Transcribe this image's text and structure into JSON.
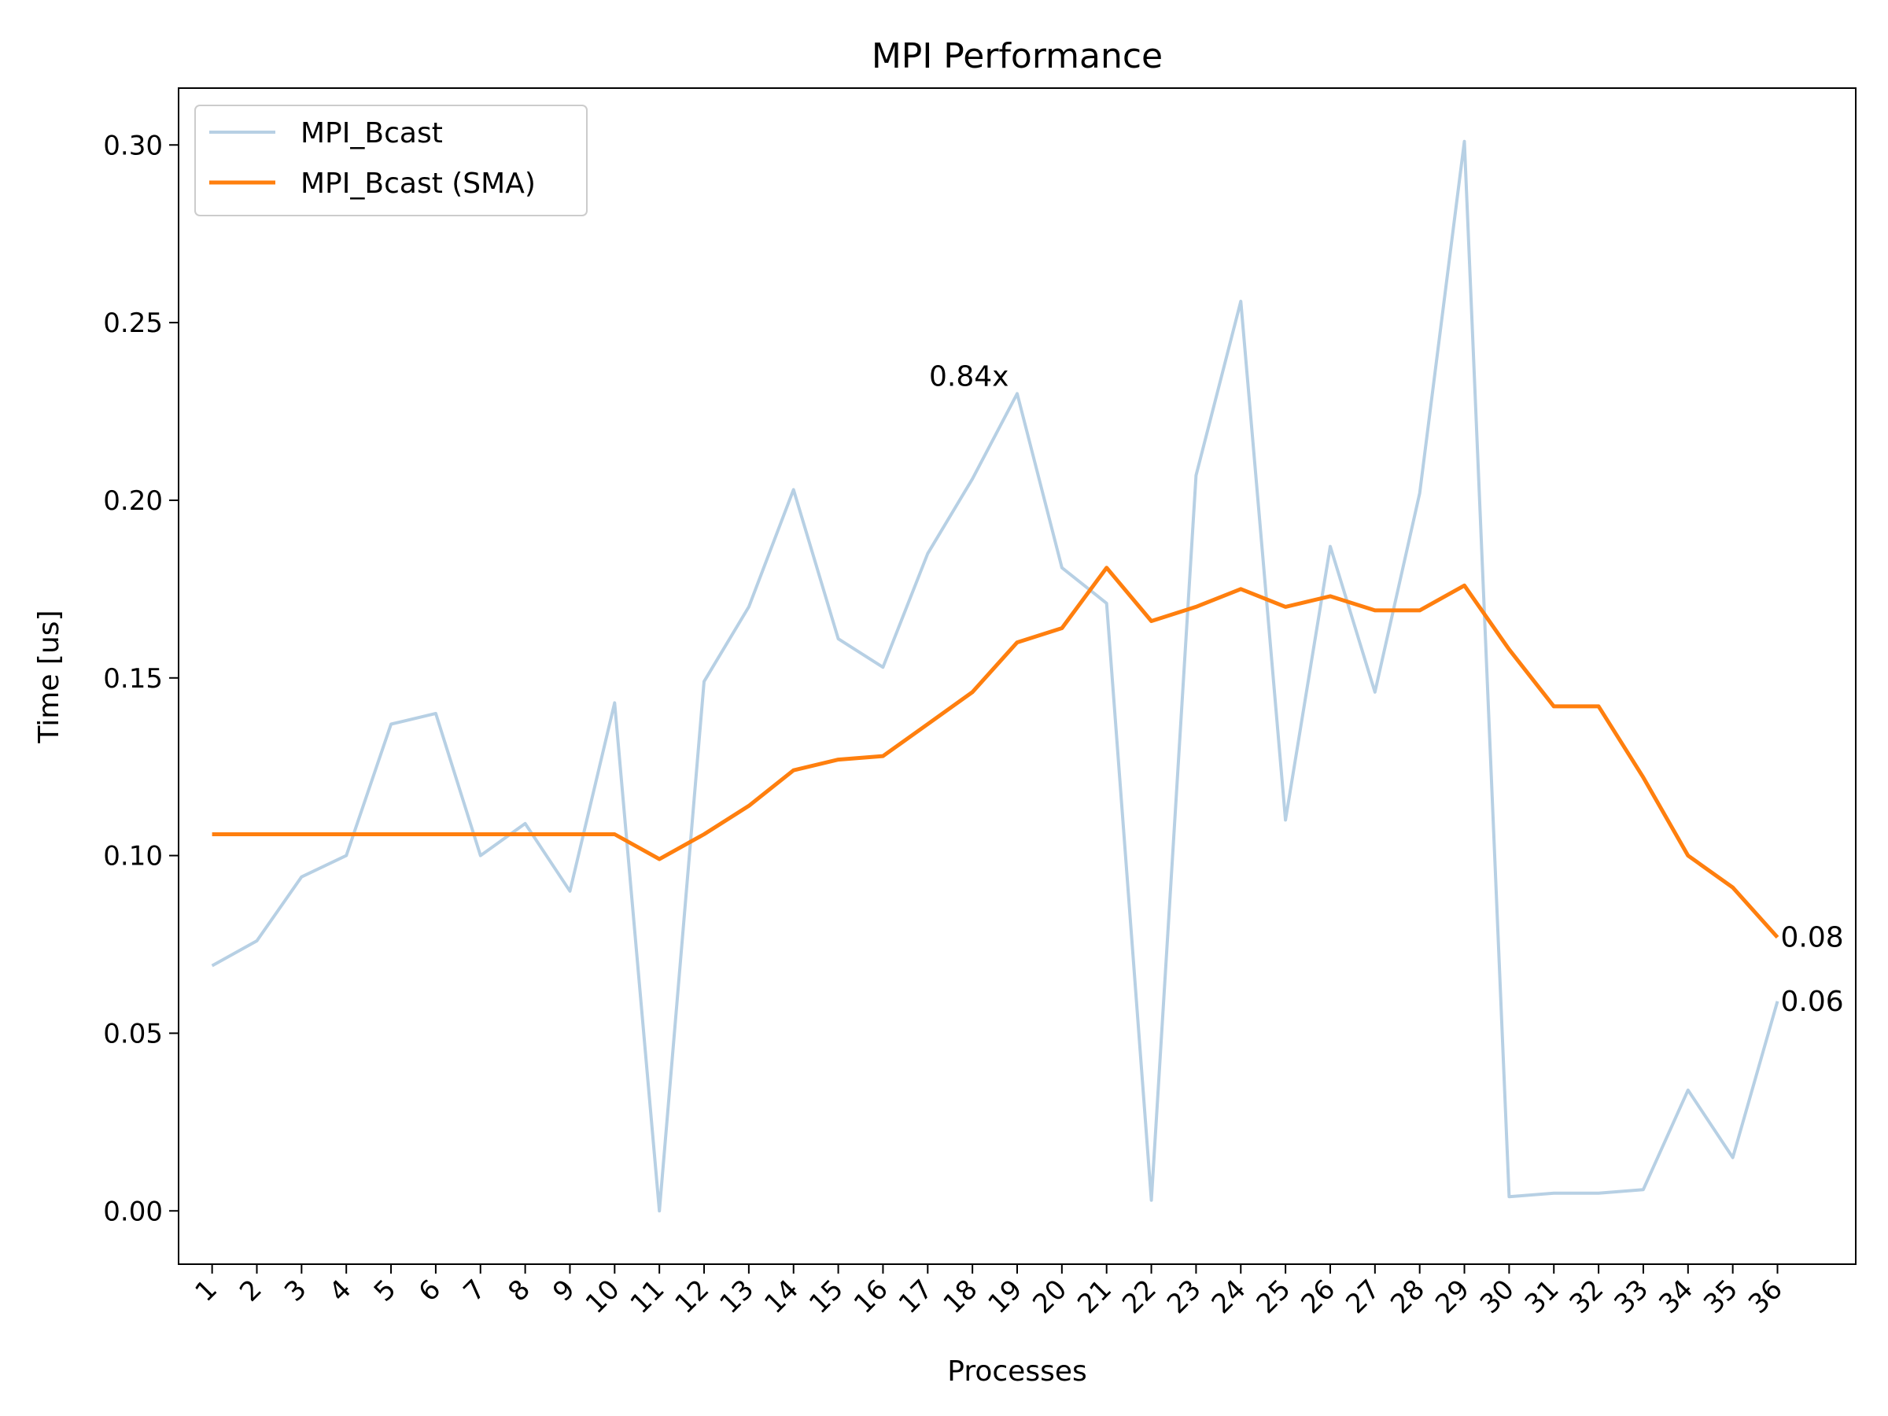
{
  "chart_data": {
    "type": "line",
    "title": "MPI Performance",
    "xlabel": "Processes",
    "ylabel": "Time [us]",
    "ylim": [
      -0.015,
      0.316
    ],
    "xlim": [
      -0.75,
      36.75
    ],
    "categories": [
      "1",
      "2",
      "3",
      "4",
      "5",
      "6",
      "7",
      "8",
      "9",
      "10",
      "11",
      "12",
      "13",
      "14",
      "15",
      "16",
      "17",
      "18",
      "19",
      "20",
      "21",
      "22",
      "23",
      "24",
      "25",
      "26",
      "27",
      "28",
      "29",
      "30",
      "31",
      "32",
      "33",
      "34",
      "35",
      "36"
    ],
    "y_ticks": [
      0.0,
      0.05,
      0.1,
      0.15,
      0.2,
      0.25,
      0.3
    ],
    "y_tick_labels": [
      "0.00",
      "0.05",
      "0.10",
      "0.15",
      "0.20",
      "0.25",
      "0.30"
    ],
    "legend_position": "top-left",
    "series": [
      {
        "name": "MPI_Bcast",
        "color": "#b7d0e4",
        "values": [
          0.069,
          0.076,
          0.094,
          0.1,
          0.137,
          0.14,
          0.1,
          0.109,
          0.09,
          0.143,
          0.0,
          0.149,
          0.17,
          0.203,
          0.161,
          0.153,
          0.185,
          0.206,
          0.23,
          0.181,
          0.171,
          0.003,
          0.207,
          0.256,
          0.11,
          0.187,
          0.146,
          0.202,
          0.301,
          0.004,
          0.005,
          0.005,
          0.006,
          0.034,
          0.015,
          0.059
        ]
      },
      {
        "name": "MPI_Bcast (SMA)",
        "color": "#ff7f0e",
        "values": [
          0.106,
          0.106,
          0.106,
          0.106,
          0.106,
          0.106,
          0.106,
          0.106,
          0.106,
          0.106,
          0.099,
          0.106,
          0.114,
          0.124,
          0.127,
          0.128,
          0.137,
          0.146,
          0.16,
          0.164,
          0.181,
          0.166,
          0.17,
          0.175,
          0.17,
          0.173,
          0.169,
          0.169,
          0.176,
          0.158,
          0.142,
          0.142,
          0.122,
          0.1,
          0.091,
          0.077
        ]
      }
    ],
    "annotations": [
      {
        "text": "0.84x",
        "x_index": 18,
        "y": 0.23
      },
      {
        "text": "0.08",
        "x_index": 35,
        "y": 0.077
      },
      {
        "text": "0.06",
        "x_index": 35,
        "y": 0.059
      }
    ]
  }
}
